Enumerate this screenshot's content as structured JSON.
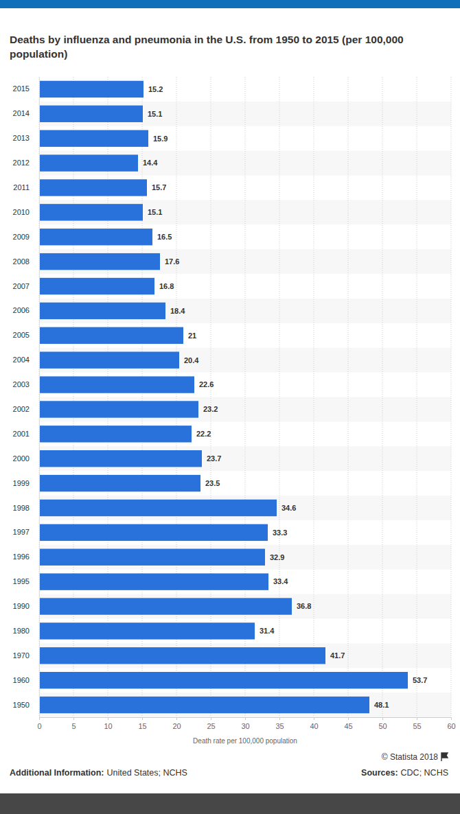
{
  "chart_data": {
    "type": "bar",
    "orientation": "horizontal",
    "title": "Deaths by influenza and pneumonia in the U.S. from 1950 to 2015 (per 100,000 population)",
    "x_label": "Death rate per 100,000 population",
    "categories": [
      "2015",
      "2014",
      "2013",
      "2012",
      "2011",
      "2010",
      "2009",
      "2008",
      "2007",
      "2006",
      "2005",
      "2004",
      "2003",
      "2002",
      "2001",
      "2000",
      "1999",
      "1998",
      "1997",
      "1996",
      "1995",
      "1990",
      "1980",
      "1970",
      "1960",
      "1950"
    ],
    "values": [
      15.2,
      15.1,
      15.9,
      14.4,
      15.7,
      15.1,
      16.5,
      17.6,
      16.8,
      18.4,
      21,
      20.4,
      22.6,
      23.2,
      22.2,
      23.7,
      23.5,
      34.6,
      33.3,
      32.9,
      33.4,
      36.8,
      31.4,
      41.7,
      53.7,
      48.1
    ],
    "color": "#2a72db",
    "xlim": [
      0,
      60
    ],
    "xticks": [
      0,
      5,
      10,
      15,
      20,
      25,
      30,
      35,
      40,
      45,
      50,
      55,
      60
    ],
    "grid": true,
    "data_labels": true,
    "credit": "© Statista 2018",
    "additional_info_label": "Additional Information:",
    "additional_info": "United States; NCHS",
    "sources_label": "Sources:",
    "sources": "CDC; NCHS"
  }
}
